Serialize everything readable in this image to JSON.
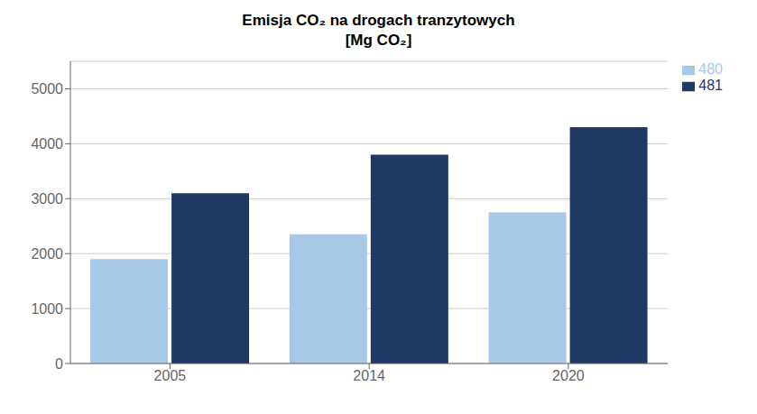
{
  "chart_data": {
    "type": "bar",
    "title": "Emisja CO₂ na drogach tranzytowych\n[Mg CO₂]",
    "categories": [
      "2005",
      "2014",
      "2020"
    ],
    "series": [
      {
        "name": "480",
        "color": "#A8C8E8",
        "values": [
          1900,
          2350,
          2750
        ]
      },
      {
        "name": "481",
        "color": "#1F3864",
        "values": [
          3100,
          3800,
          4300
        ]
      }
    ],
    "ylim": [
      0,
      5500
    ],
    "yticks": [
      0,
      1000,
      2000,
      3000,
      4000,
      5000
    ],
    "grid": true,
    "legend": "upper right"
  }
}
